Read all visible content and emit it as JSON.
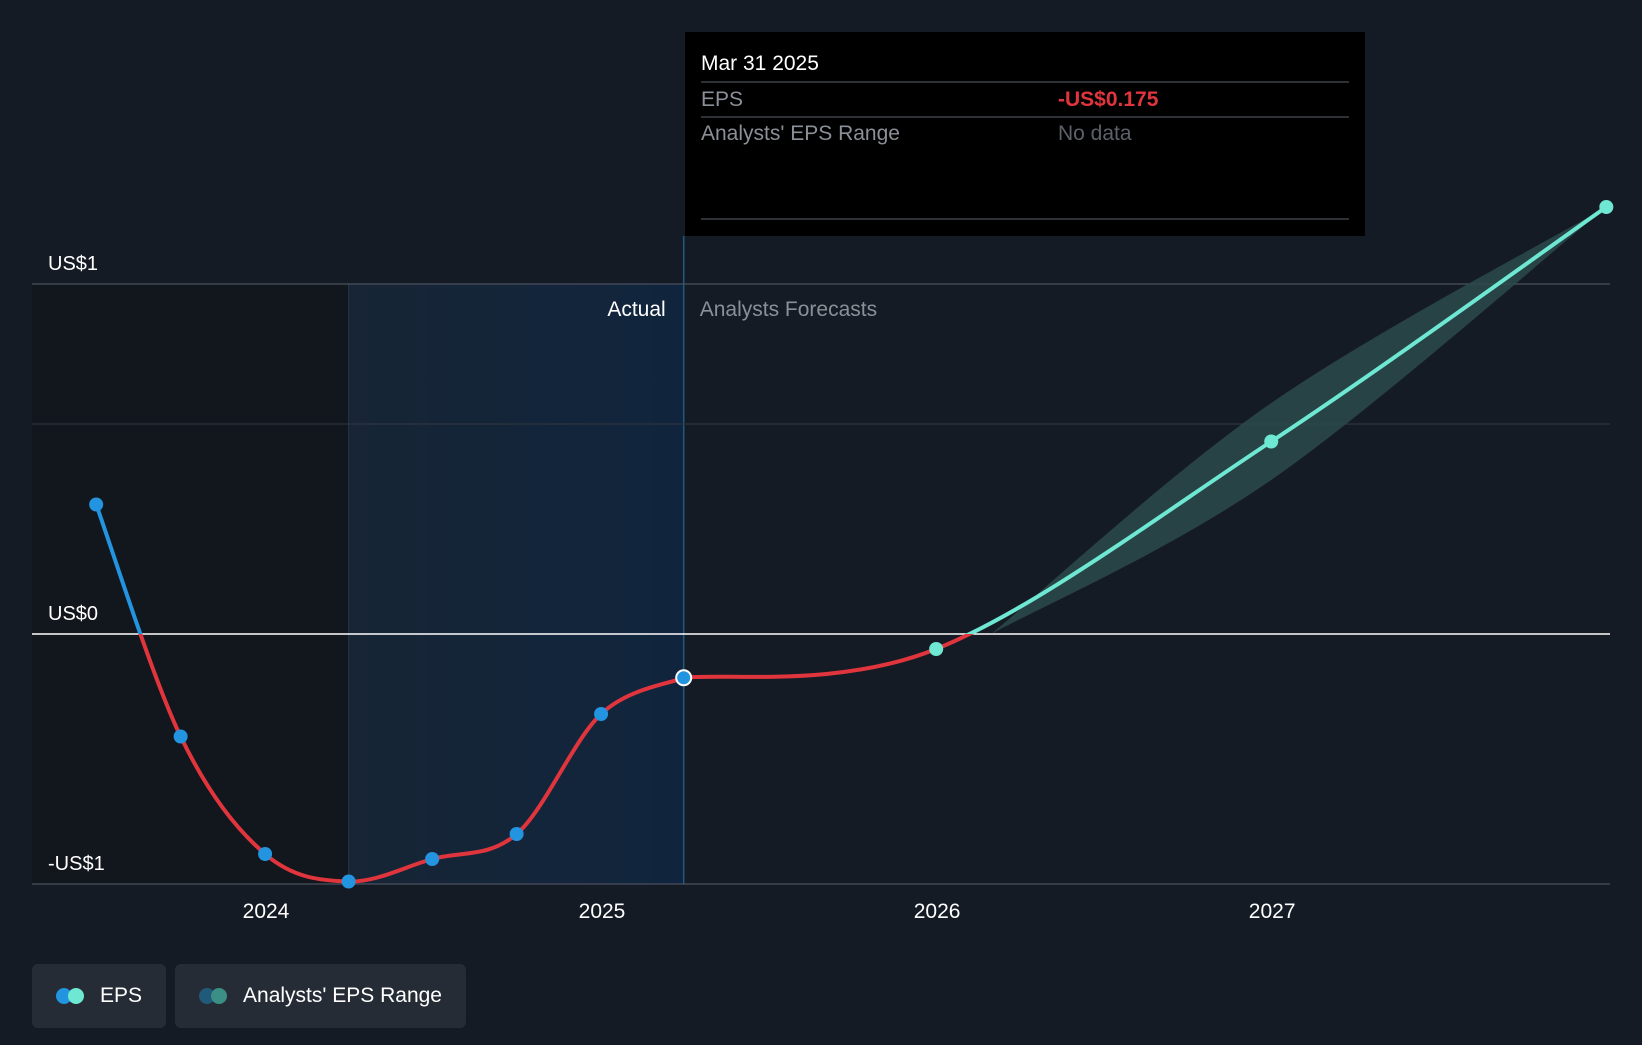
{
  "chart_data": {
    "type": "line",
    "title": "",
    "xlabel": "",
    "ylabel": "",
    "x_ticks": [
      "2024",
      "2025",
      "2026",
      "2027"
    ],
    "y_ticks": [
      {
        "value": 1,
        "label": "US$1"
      },
      {
        "value": 0,
        "label": "US$0"
      },
      {
        "value": -1,
        "label": "-US$1"
      }
    ],
    "xlim": [
      "2023-05-01",
      "2027-12-31"
    ],
    "ylim": [
      -1,
      1
    ],
    "gridlines": [
      1,
      0.6,
      0,
      -1
    ],
    "actual_region_start": "2024-03-31",
    "actual_region_end": "2025-03-31",
    "region_labels": {
      "actual": "Actual",
      "forecast": "Analysts Forecasts"
    },
    "series": [
      {
        "name": "EPS",
        "kind": "actual",
        "points": [
          {
            "x": "2023-06-30",
            "y": 0.37
          },
          {
            "x": "2023-09-30",
            "y": -0.41
          },
          {
            "x": "2023-12-31",
            "y": -0.88
          },
          {
            "x": "2024-03-31",
            "y": -0.99
          },
          {
            "x": "2024-06-30",
            "y": -0.9
          },
          {
            "x": "2024-09-30",
            "y": -0.8
          },
          {
            "x": "2024-12-31",
            "y": -0.32
          },
          {
            "x": "2025-03-31",
            "y": -0.175
          }
        ]
      },
      {
        "name": "EPS",
        "kind": "forecast",
        "points": [
          {
            "x": "2025-03-31",
            "y": -0.175
          },
          {
            "x": "2025-12-31",
            "y": -0.06
          },
          {
            "x": "2026-12-31",
            "y": 0.55
          },
          {
            "x": "2027-12-31",
            "y": 1.22
          }
        ]
      }
    ],
    "range": {
      "name": "Analysts' EPS Range",
      "points": [
        {
          "x": "2026-03-01",
          "low": 0.0,
          "high": 0.0
        },
        {
          "x": "2026-12-31",
          "low": 0.44,
          "high": 0.66
        },
        {
          "x": "2027-12-31",
          "low": 1.22,
          "high": 1.22
        }
      ]
    },
    "tooltip": {
      "date": "Mar 31 2025",
      "rows": [
        {
          "label": "EPS",
          "value": "-US$0.175"
        },
        {
          "label": "Analysts' EPS Range",
          "value": "No data"
        }
      ]
    },
    "legend": [
      {
        "label": "EPS",
        "colors": [
          "#2394df",
          "#6ee7d3"
        ]
      },
      {
        "label": "Analysts' EPS Range",
        "colors": [
          "#1f5a7a",
          "#3c8f84"
        ]
      }
    ],
    "legend_position": "bottom-left",
    "colors": {
      "background": "#151b24",
      "positive_actual": "#2394df",
      "negative": "#e0353d",
      "forecast": "#6ee7d3",
      "range_fill": "#2b4a4b",
      "tooltip_bg": "#000000",
      "tooltip_value_negative": "#e0353d",
      "muted_text": "#8a8f98"
    }
  }
}
